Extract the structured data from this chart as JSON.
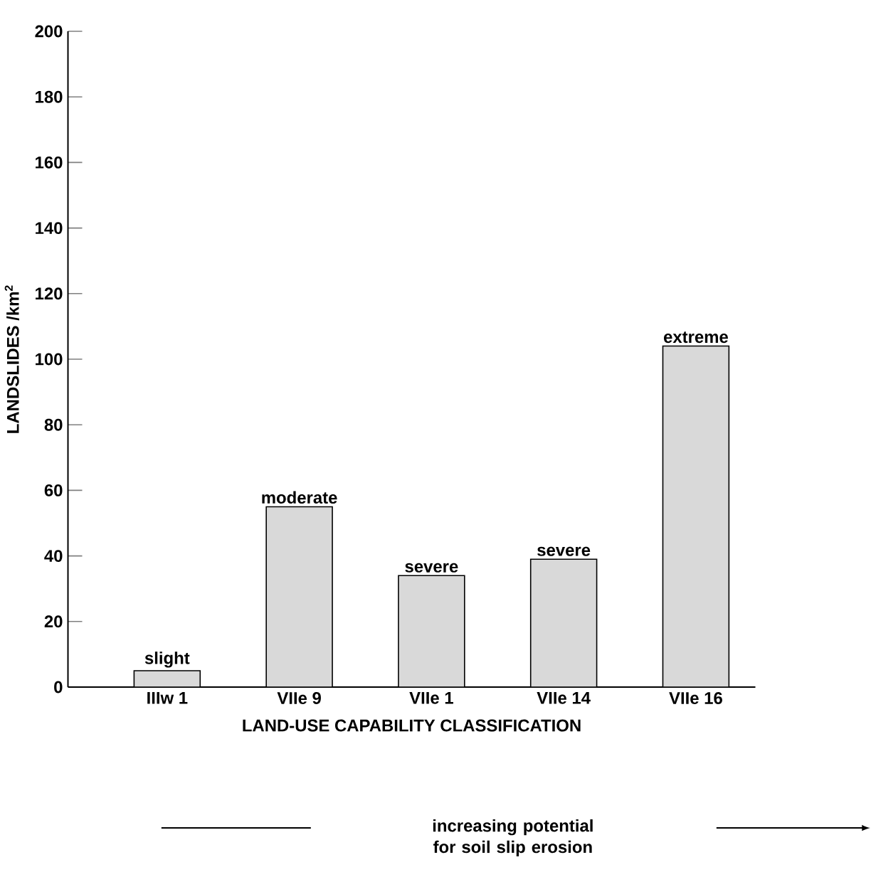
{
  "chart_data": {
    "type": "bar",
    "categories": [
      "IIIw 1",
      "VIIe 9",
      "VIIe 1",
      "VIIe 14",
      "VIIe 16"
    ],
    "values": [
      5,
      55,
      34,
      39,
      104
    ],
    "color": "#d9d9d9",
    "xlabel": "LAND-USE CAPABILITY CLASSIFICATION",
    "ylabel": "LANDSLIDES /km$^{2}$",
    "ylim": [
      0,
      200
    ],
    "yticks": [
      0,
      20,
      40,
      60,
      80,
      100,
      120,
      140,
      160,
      180,
      200
    ],
    "grid": false,
    "annotations": [
      {
        "text": "slight",
        "x": "IIIw 1",
        "y": 5
      },
      {
        "text": "moderate",
        "x": "VIIe 9",
        "y": 55
      },
      {
        "text": "severe",
        "x": "VIIe 1",
        "y": 34
      },
      {
        "text": "severe",
        "x": "VIIe 14",
        "y": 39
      },
      {
        "text": "extreme",
        "x": "VIIe 16",
        "y": 104
      },
      "increasing potential for soil slip erosion"
    ]
  }
}
